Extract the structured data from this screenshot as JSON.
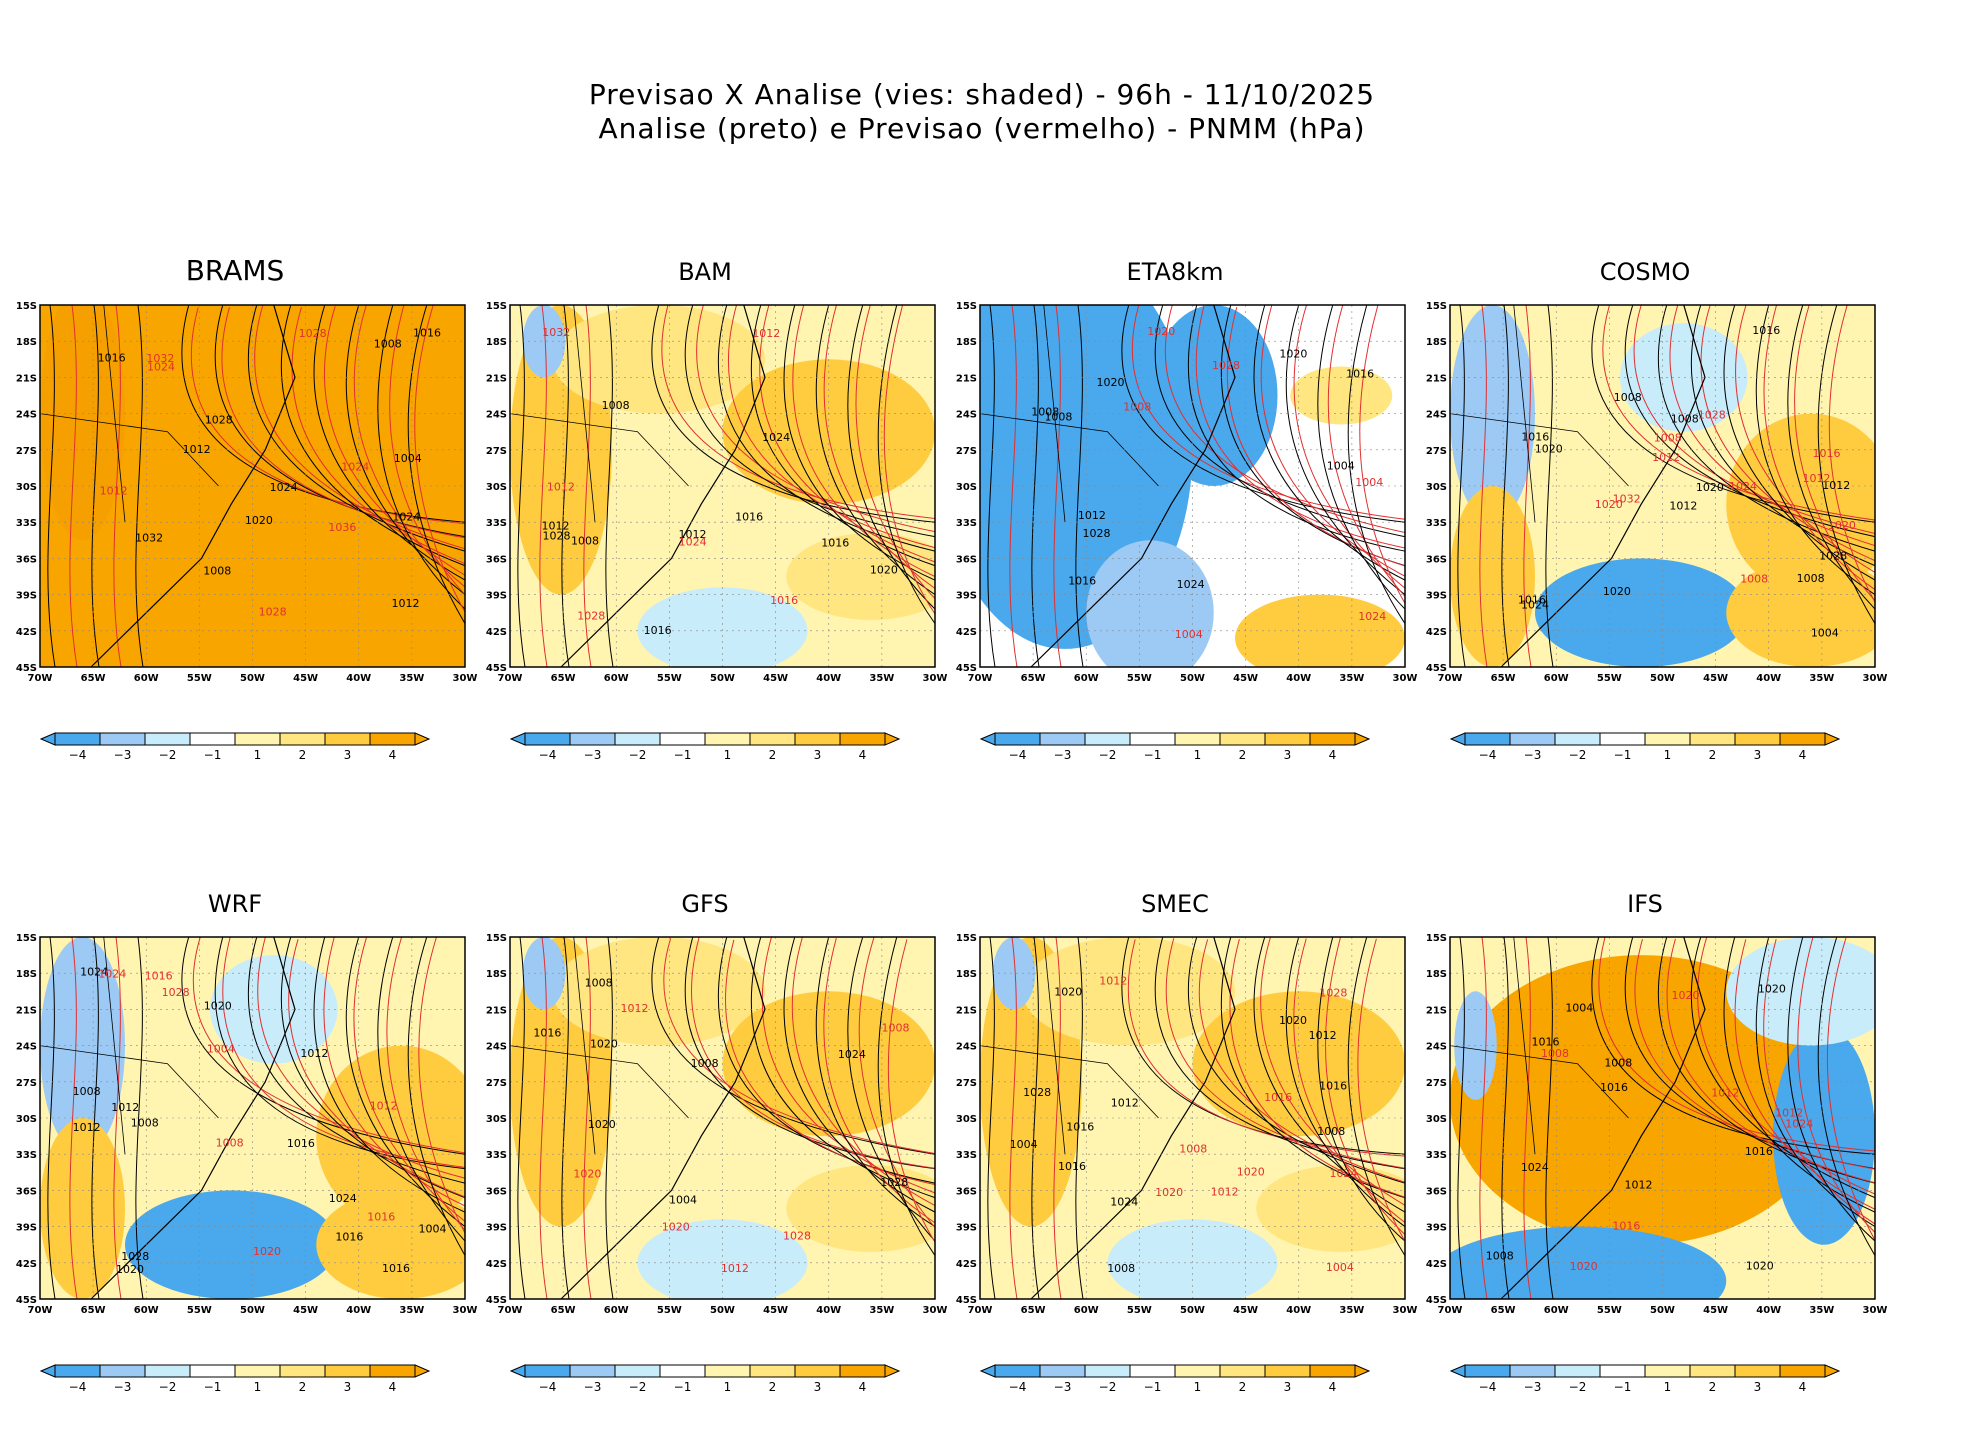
{
  "header": {
    "line1": "Previsao X Analise (vies: shaded) - 96h - 11/10/2025",
    "line2": "Analise (preto) e Previsao (vermelho) - PNMM (hPa)"
  },
  "colors": {
    "neg4": "#4aa8ec",
    "neg3": "#9ccaf4",
    "neg2": "#c8ecfa",
    "neg1": "#ffffff",
    "pos1": "#fff4b0",
    "pos2": "#ffe680",
    "pos3": "#ffcc40",
    "pos4": "#f9a500",
    "analysis_line": "#000000",
    "forecast_line": "#e03030"
  },
  "chart_data": {
    "type": "heatmap",
    "lat_ticks": [
      "15S",
      "18S",
      "21S",
      "24S",
      "27S",
      "30S",
      "33S",
      "36S",
      "39S",
      "42S",
      "45S"
    ],
    "lon_ticks": [
      "70W",
      "65W",
      "60W",
      "55W",
      "50W",
      "45W",
      "40W",
      "35W",
      "30W"
    ],
    "colorbar_labels": [
      "-4",
      "-3",
      "-2",
      "-1",
      "1",
      "2",
      "3",
      "4"
    ],
    "panels": [
      {
        "model": "BRAMS",
        "bias": "pos4",
        "labels_black": [
          "1016",
          "1012",
          "1008",
          "1004",
          "1020",
          "1024",
          "1028",
          "1032",
          "1016",
          "1008",
          "1012",
          "1024"
        ],
        "labels_red": [
          "1028",
          "1032",
          "1036",
          "1012",
          "1024",
          "1024",
          "1028"
        ]
      },
      {
        "model": "BAM",
        "bias": "mixed_pos",
        "labels_black": [
          "1008",
          "1012",
          "1016",
          "1020",
          "1024",
          "1028",
          "1016",
          "1008",
          "1012",
          "1016"
        ],
        "labels_red": [
          "1024",
          "1028",
          "1032",
          "1012",
          "1016",
          "1012"
        ]
      },
      {
        "model": "ETA8km",
        "bias": "mixed_neg",
        "labels_black": [
          "1008",
          "1004",
          "1012",
          "1016",
          "1020",
          "1024",
          "1028",
          "1016",
          "1008",
          "1020"
        ],
        "labels_red": [
          "1004",
          "1008",
          "1020",
          "1024",
          "1028",
          "1004"
        ]
      },
      {
        "model": "COSMO",
        "bias": "mixed",
        "labels_black": [
          "1016",
          "1008",
          "1020",
          "1012",
          "1008",
          "1004",
          "1016",
          "1020",
          "1024",
          "1028",
          "1008",
          "1012",
          "1016",
          "1020"
        ],
        "labels_red": [
          "1008",
          "1012",
          "1016",
          "1020",
          "1024",
          "1028",
          "1032",
          "1012",
          "1008",
          "1020"
        ]
      },
      {
        "model": "WRF",
        "bias": "mixed",
        "labels_black": [
          "1012",
          "1016",
          "1008",
          "1004",
          "1012",
          "1020",
          "1024",
          "1028",
          "1008",
          "1012",
          "1016",
          "1016",
          "1020",
          "1024"
        ],
        "labels_red": [
          "1008",
          "1012",
          "1016",
          "1020",
          "1024",
          "1028",
          "1004",
          "1016"
        ]
      },
      {
        "model": "GFS",
        "bias": "mixed_pos",
        "labels_black": [
          "1008",
          "1004",
          "1008",
          "1016",
          "1020",
          "1024",
          "1028",
          "1020"
        ],
        "labels_red": [
          "1012",
          "1020",
          "1028",
          "1008",
          "1012",
          "1020"
        ]
      },
      {
        "model": "SMEC",
        "bias": "mixed_pos",
        "labels_black": [
          "1016",
          "1008",
          "1012",
          "1004",
          "1008",
          "1012",
          "1016",
          "1020",
          "1024",
          "1028",
          "1020",
          "1016"
        ],
        "labels_red": [
          "1004",
          "1008",
          "1012",
          "1016",
          "1020",
          "1024",
          "1028",
          "1012",
          "1020"
        ]
      },
      {
        "model": "IFS",
        "bias": "mixed_pos_east_neg",
        "labels_black": [
          "1016",
          "1008",
          "1004",
          "1008",
          "1012",
          "1016",
          "1020",
          "1024",
          "1016",
          "1020"
        ],
        "labels_red": [
          "1012",
          "1016",
          "1020",
          "1024",
          "1008",
          "1012",
          "1020"
        ]
      }
    ]
  }
}
